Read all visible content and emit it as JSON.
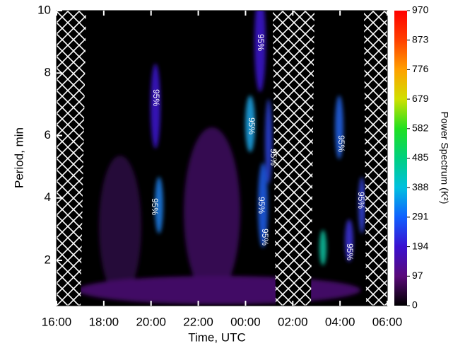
{
  "chart_data": {
    "type": "heatmap",
    "x_label": "Time, UTC",
    "y_label": "Period, min",
    "xlim": [
      16,
      30
    ],
    "xticks": [
      {
        "value": 16,
        "label": "16:00"
      },
      {
        "value": 18,
        "label": "18:00"
      },
      {
        "value": 20,
        "label": "20:00"
      },
      {
        "value": 22,
        "label": "22:00"
      },
      {
        "value": 24,
        "label": "00:00"
      },
      {
        "value": 26,
        "label": "02:00"
      },
      {
        "value": 28,
        "label": "04:00"
      },
      {
        "value": 30,
        "label": "06:00"
      }
    ],
    "ylim": [
      0.55,
      10
    ],
    "yticks": [
      2,
      4,
      6,
      8,
      10
    ],
    "colorbar": {
      "label": "Power Spectrum (K²)",
      "lim": [
        0,
        970
      ],
      "ticks": [
        0,
        97,
        194,
        291,
        388,
        485,
        582,
        679,
        776,
        873,
        970
      ]
    },
    "annotations": [
      "95%",
      "95%",
      "95%",
      "95%",
      "95%",
      "95%",
      "95%",
      "95%",
      "95%",
      "95%"
    ]
  }
}
